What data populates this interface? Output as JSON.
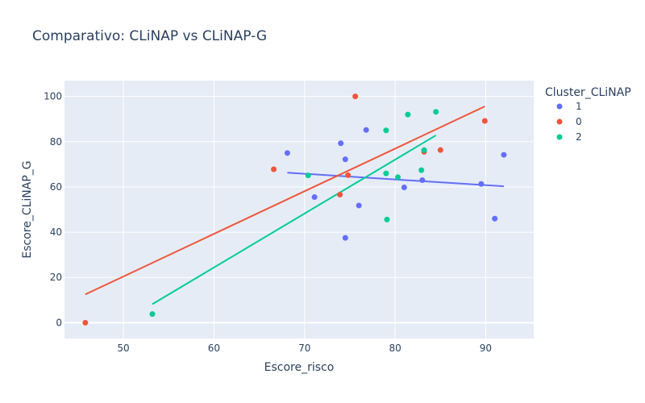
{
  "chart_data": {
    "type": "scatter",
    "title": "Comparativo: CLiNAP vs CLiNAP-G",
    "xlabel": "Escore_risco",
    "ylabel": "Escore_CLiNAP_G",
    "xlim": [
      43.5,
      95.3
    ],
    "ylim": [
      -7,
      107
    ],
    "x_ticks": [
      50,
      60,
      70,
      80,
      90
    ],
    "y_ticks": [
      0,
      20,
      40,
      60,
      80,
      100
    ],
    "grid": true,
    "plot_background": "#e5ecf6",
    "legend": {
      "title": "Cluster_CLiNAP",
      "placement": "right"
    },
    "series": [
      {
        "name": "1",
        "color": "#636efa",
        "points": [
          [
            68.1,
            75.0
          ],
          [
            71.1,
            55.5
          ],
          [
            74.0,
            79.3
          ],
          [
            74.5,
            72.2
          ],
          [
            74.5,
            37.5
          ],
          [
            76.0,
            51.8
          ],
          [
            76.8,
            85.2
          ],
          [
            81.0,
            59.8
          ],
          [
            83.0,
            63.0
          ],
          [
            89.5,
            61.3
          ],
          [
            91.0,
            46.0
          ],
          [
            92.0,
            74.2
          ]
        ],
        "trendline": [
          [
            68.1,
            66.3
          ],
          [
            92.0,
            60.3
          ]
        ]
      },
      {
        "name": "0",
        "color": "#ef553b",
        "points": [
          [
            45.8,
            0.0
          ],
          [
            66.6,
            67.8
          ],
          [
            73.9,
            56.6
          ],
          [
            74.8,
            65.2
          ],
          [
            75.6,
            100.0
          ],
          [
            83.2,
            75.5
          ],
          [
            85.0,
            76.3
          ],
          [
            89.9,
            89.2
          ]
        ],
        "trendline": [
          [
            45.8,
            12.5
          ],
          [
            89.9,
            95.6
          ]
        ]
      },
      {
        "name": "2",
        "color": "#00cc96",
        "points": [
          [
            53.2,
            3.8
          ],
          [
            70.4,
            65.1
          ],
          [
            79.0,
            85.0
          ],
          [
            79.0,
            66.0
          ],
          [
            79.1,
            45.6
          ],
          [
            80.3,
            64.3
          ],
          [
            81.4,
            92.0
          ],
          [
            82.9,
            67.4
          ],
          [
            83.2,
            76.3
          ],
          [
            84.5,
            93.2
          ]
        ],
        "trendline": [
          [
            53.2,
            8.2
          ],
          [
            84.5,
            82.8
          ]
        ]
      }
    ]
  }
}
